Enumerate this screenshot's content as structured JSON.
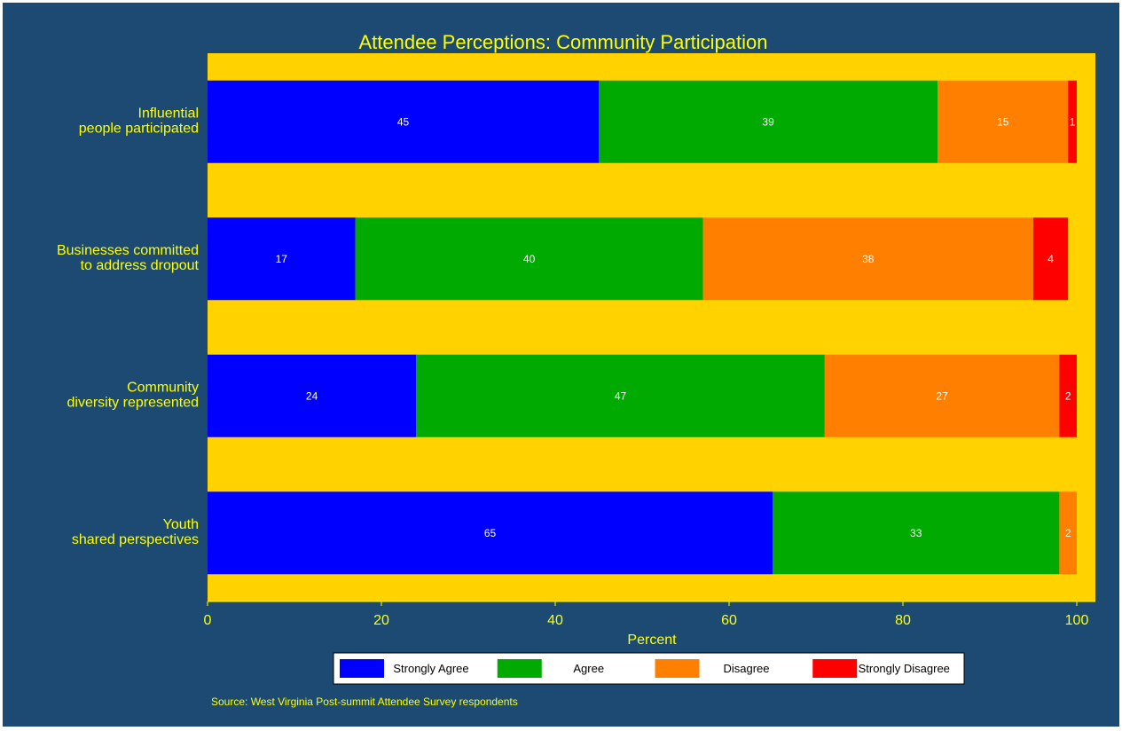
{
  "chart_data": {
    "type": "bar",
    "orientation": "horizontal",
    "stacked": true,
    "title": "Attendee Perceptions: Community Participation",
    "xlabel": "Percent",
    "xlim": [
      0,
      100
    ],
    "xticks": [
      0,
      20,
      40,
      60,
      80,
      100
    ],
    "categories": [
      [
        "Influential",
        "people participated"
      ],
      [
        "Businesses committed",
        "to address dropout"
      ],
      [
        "Community",
        "diversity represented"
      ],
      [
        "Youth",
        "shared perspectives"
      ]
    ],
    "series": [
      {
        "name": "Strongly Agree",
        "color": "#0000ff",
        "values": [
          45,
          17,
          24,
          65
        ],
        "labels": [
          "45",
          "17",
          "24",
          "65"
        ]
      },
      {
        "name": "Agree",
        "color": "#00aa00",
        "values": [
          39,
          40,
          47,
          33
        ],
        "labels": [
          "39",
          "40",
          "47",
          "33"
        ]
      },
      {
        "name": "Disagree",
        "color": "#ff8000",
        "values": [
          15,
          38,
          27,
          2
        ],
        "labels": [
          "15",
          "38",
          "27",
          "2"
        ]
      },
      {
        "name": "Strongly Disagree",
        "color": "#ff0000",
        "values": [
          1,
          4,
          2,
          0
        ],
        "labels": [
          "1",
          "4",
          "2",
          ""
        ]
      }
    ],
    "legend_position": "bottom",
    "grid": false,
    "note": "Source: West Virginia Post-summit Attendee Survey respondents",
    "colors": {
      "background": "#1c4a72",
      "plot_area": "#ffd200",
      "text": "#ffff00",
      "bar_label": "#ffffff"
    }
  }
}
